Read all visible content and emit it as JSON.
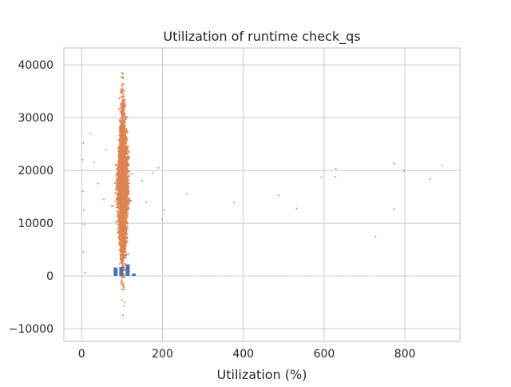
{
  "chart_data": {
    "type": "scatter",
    "title": "Utilization of runtime check_qs",
    "xlabel": "Utilization (%)",
    "ylabel": "",
    "xlim": [
      -44,
      936
    ],
    "ylim": [
      -12400,
      43200
    ],
    "x_ticks": [
      0,
      200,
      400,
      600,
      800
    ],
    "x_tick_labels": [
      "0",
      "200",
      "400",
      "600",
      "800"
    ],
    "y_ticks": [
      -10000,
      0,
      10000,
      20000,
      30000,
      40000
    ],
    "y_tick_labels": [
      "−10000",
      "0",
      "10000",
      "20000",
      "30000",
      "40000"
    ],
    "grid": true,
    "legend": "none",
    "series": [
      {
        "color": "#dd8452",
        "description_cluster": {
          "x_center": 102,
          "x_spread": 12,
          "y_center": 17000,
          "y_spread": 6500,
          "y_min": -10000,
          "y_max": 40500
        },
        "outliers": [
          {
            "x": 4,
            "y": 25200
          },
          {
            "x": 2,
            "y": 22000
          },
          {
            "x": 3,
            "y": 16000
          },
          {
            "x": 5,
            "y": 12500
          },
          {
            "x": 6,
            "y": 9800
          },
          {
            "x": 4,
            "y": 4500
          },
          {
            "x": 8,
            "y": 600
          },
          {
            "x": 22,
            "y": 27000
          },
          {
            "x": 30,
            "y": 21500
          },
          {
            "x": 40,
            "y": 17500
          },
          {
            "x": 55,
            "y": 14500
          },
          {
            "x": 60,
            "y": 24000
          },
          {
            "x": 150,
            "y": 18000
          },
          {
            "x": 160,
            "y": 14000
          },
          {
            "x": 175,
            "y": 19500
          },
          {
            "x": 190,
            "y": 20500
          },
          {
            "x": 205,
            "y": 12500
          },
          {
            "x": 200,
            "y": 10800
          },
          {
            "x": 260,
            "y": 15500
          },
          {
            "x": 377,
            "y": 13900
          },
          {
            "x": 487,
            "y": 15300
          },
          {
            "x": 532,
            "y": 12800
          },
          {
            "x": 593,
            "y": 18700
          },
          {
            "x": 628,
            "y": 18800
          },
          {
            "x": 629,
            "y": 20300
          },
          {
            "x": 727,
            "y": 7500
          },
          {
            "x": 773,
            "y": 12700
          },
          {
            "x": 774,
            "y": 21300
          },
          {
            "x": 797,
            "y": 19900
          },
          {
            "x": 862,
            "y": 18400
          },
          {
            "x": 893,
            "y": 20900
          }
        ]
      },
      {
        "color": "#4c72b0",
        "bars": [
          {
            "x": 83,
            "y0": 0,
            "y1": 1600
          },
          {
            "x": 97,
            "y0": 0,
            "y1": 1700
          },
          {
            "x": 113,
            "y0": 0,
            "y1": 2200
          },
          {
            "x": 128,
            "y0": 0,
            "y1": 450
          }
        ]
      }
    ]
  }
}
